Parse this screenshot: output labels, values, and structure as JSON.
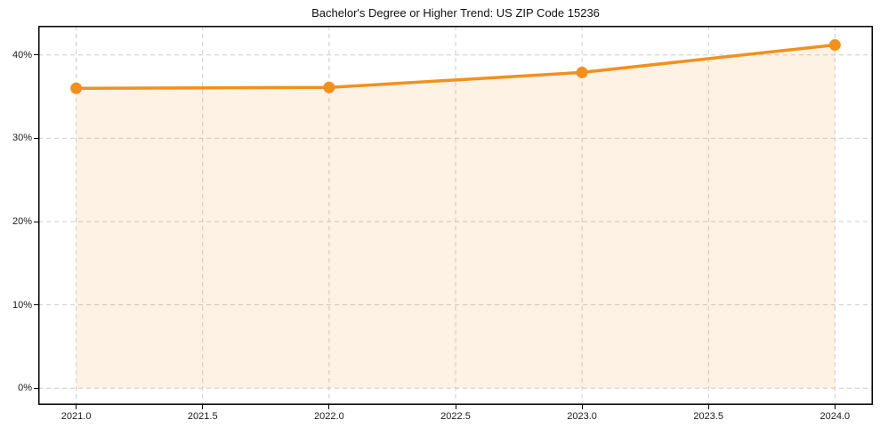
{
  "chart_data": {
    "type": "area",
    "title": "Bachelor's Degree or Higher Trend: US ZIP Code 15236",
    "x": [
      2021,
      2022,
      2023,
      2024
    ],
    "values": [
      36.0,
      36.1,
      37.9,
      41.2
    ],
    "xlabel": "",
    "ylabel": "",
    "xlim": [
      2020.85,
      2024.15
    ],
    "ylim": [
      -2,
      43.5
    ],
    "xticks": [
      2021.0,
      2021.5,
      2022.0,
      2022.5,
      2023.0,
      2023.5,
      2024.0
    ],
    "xtick_labels": [
      "2021.0",
      "2021.5",
      "2022.0",
      "2022.5",
      "2023.0",
      "2023.5",
      "2024.0"
    ],
    "yticks": [
      0,
      10,
      20,
      30,
      40
    ],
    "ytick_labels": [
      "0%",
      "10%",
      "20%",
      "30%",
      "40%"
    ],
    "grid": true,
    "legend": "none",
    "line_color": "#f2901e",
    "fill_color": "#f2901e",
    "fill_opacity": 0.12,
    "grid_color": "#cccccc",
    "axis_color": "#000000",
    "text_color": "#1a1a1a",
    "background_color": "#ffffff",
    "marker": "circle"
  }
}
